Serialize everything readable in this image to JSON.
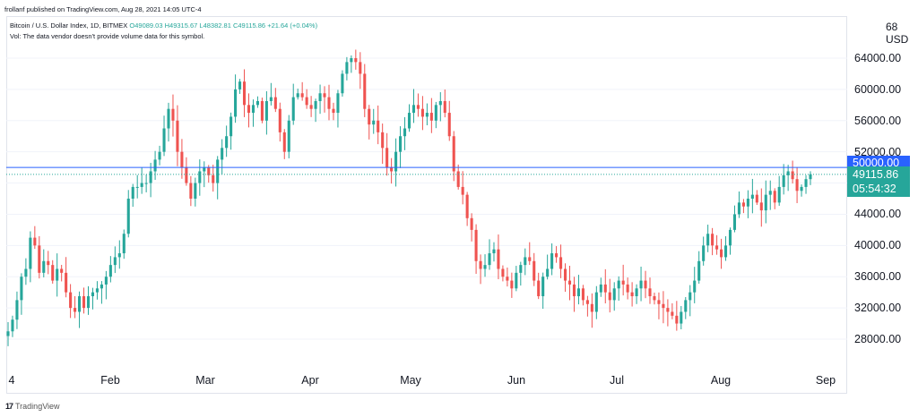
{
  "header": {
    "text": "frollanf published on TradingView.com, Aug 28, 2021 14:05 UTC-4"
  },
  "symbol": {
    "name": "Bitcoin / U.S. Dollar Index, 1D, BITMEX",
    "open": "O49089.03",
    "high": "H49315.67",
    "low": "L48382.81",
    "close": "C49115.86",
    "change": "+21.64 (+0.04%)"
  },
  "volume_note": "Vol: The data vendor doesn't provide volume data for this symbol.",
  "currency": "USD",
  "axis_top_label": "68",
  "level_tag": "50000.00",
  "last_price_tag": "49115.86",
  "countdown": "05:54:32",
  "footer": {
    "logo": "17",
    "brand": "TradingView"
  },
  "colors": {
    "up": "#26a69a",
    "down": "#ef5350",
    "level_line": "#2962ff",
    "last_line": "#26a69a"
  },
  "chart_data": {
    "type": "candlestick",
    "title": "",
    "xlabel": "",
    "ylabel": "",
    "ylim": [
      24000,
      70000
    ],
    "y_ticks": [
      "64000.00",
      "60000.00",
      "56000.00",
      "52000.00",
      "48000.00",
      "44000.00",
      "40000.00",
      "36000.00",
      "32000.00",
      "28000.00"
    ],
    "x_ticks": [
      "4",
      "Feb",
      "Mar",
      "Apr",
      "May",
      "Jun",
      "Jul",
      "Aug",
      "Sep"
    ],
    "grid": true,
    "horizontal_levels": [
      {
        "value": 50000,
        "label": "50000.00"
      }
    ],
    "last_price": 49115.86,
    "series": [
      {
        "values": [
          29000,
          30500,
          33000,
          36000,
          37000,
          41000,
          40000,
          36500,
          38000,
          37500,
          35500,
          37000,
          36500,
          34000,
          32000,
          31500,
          33500,
          32000,
          33500,
          34000,
          34500,
          35000,
          36000,
          37500,
          38500,
          39000,
          41500,
          46000,
          47500,
          47500,
          48000,
          48000,
          49500,
          51000,
          52000,
          55000,
          57500,
          56000,
          52000,
          50000,
          48000,
          46000,
          48000,
          49500,
          50000,
          49000,
          48000,
          51000,
          52500,
          54000,
          56500,
          60000,
          61000,
          58000,
          57000,
          58000,
          58500,
          56000,
          58500,
          59000,
          57500,
          54500,
          52000,
          56000,
          59000,
          59500,
          59000,
          58000,
          57500,
          58500,
          59500,
          59000,
          57500,
          57000,
          59500,
          62000,
          63500,
          64000,
          63500,
          62000,
          57500,
          55500,
          56000,
          54500,
          52500,
          50000,
          49500,
          52000,
          54000,
          55000,
          57000,
          58000,
          57500,
          56500,
          57000,
          56000,
          58000,
          58500,
          57000,
          54000,
          49500,
          47500,
          46500,
          43500,
          42000,
          38000,
          37000,
          37500,
          39000,
          39500,
          37000,
          36000,
          35500,
          34500,
          36500,
          37500,
          38500,
          38000,
          35500,
          33500,
          36000,
          37000,
          39000,
          38500,
          37000,
          35500,
          35000,
          33500,
          34500,
          33000,
          32500,
          31500,
          34000,
          35000,
          34000,
          33000,
          34500,
          35500,
          35000,
          34000,
          33500,
          34500,
          35500,
          34500,
          33500,
          33000,
          32500,
          32000,
          31500,
          31000,
          30000,
          31500,
          33000,
          34000,
          35500,
          38000,
          40000,
          41500,
          40000,
          39500,
          38500,
          40000,
          42000,
          44000,
          45500,
          45000,
          46000,
          46500,
          45500,
          44500,
          46500,
          47000,
          45500,
          47500,
          49000,
          49500,
          48500,
          47000,
          47500,
          48500,
          49115.86
        ]
      }
    ]
  }
}
